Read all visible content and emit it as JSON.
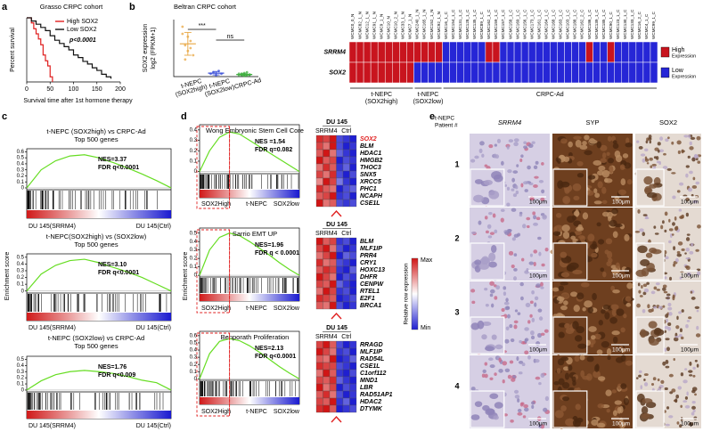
{
  "a": {
    "letter": "a",
    "title": "Grasso CRPC cohort",
    "y_label": "Percent survival",
    "x_label": "Survival time after 1st hormone therapy",
    "p_value": "p<0.0001",
    "xlim": [
      0,
      200
    ],
    "ylim": [
      0,
      100
    ],
    "xticks": [
      0,
      50,
      100,
      150,
      200
    ],
    "series": [
      {
        "name": "High SOX2",
        "color": "#e02020",
        "x": [
          0,
          10,
          15,
          20,
          25,
          30,
          35,
          40,
          45,
          50,
          55
        ],
        "y": [
          100,
          92,
          83,
          75,
          67,
          58,
          42,
          33,
          25,
          8,
          0
        ]
      },
      {
        "name": "Low SOX2",
        "color": "#111111",
        "x": [
          0,
          10,
          20,
          30,
          40,
          50,
          60,
          70,
          80,
          90,
          100,
          110,
          120,
          130,
          140,
          150,
          160,
          170,
          180
        ],
        "y": [
          100,
          95,
          90,
          85,
          80,
          72,
          65,
          60,
          55,
          50,
          42,
          38,
          32,
          28,
          22,
          18,
          12,
          8,
          5
        ]
      }
    ]
  },
  "b": {
    "letter": "b",
    "title": "Beltran CRPC cohort",
    "y_label": [
      "SOX2 expression",
      "log2 (FPKM+1)"
    ],
    "categories": [
      [
        "t-NEPC",
        "(SOX2high)"
      ],
      [
        "t-NEPC",
        "(SOX2low)"
      ],
      [
        "CRPC-Ad"
      ]
    ],
    "colors": [
      "#e8a640",
      "#3a4fd8",
      "#3fae3f"
    ],
    "ylim": [
      0,
      40
    ],
    "points": [
      [
        30,
        22,
        18,
        25,
        15,
        35,
        12,
        28,
        20
      ],
      [
        2,
        3,
        1,
        4,
        2
      ],
      [
        1,
        2,
        0.5,
        3,
        1.5,
        2,
        1,
        2.5,
        0.8,
        1.2
      ]
    ],
    "means": [
      23,
      2.4,
      1.5
    ],
    "sd": [
      8,
      1.2,
      0.8
    ],
    "significance": [
      "***",
      "ns"
    ]
  },
  "heatmap": {
    "columns": [
      "WCMC0_0_N",
      "WCMC82_1_N",
      "WCMC12_1_N",
      "WCMC91_1_N",
      "WCMC9_1_N",
      "WCMC10_N",
      "WCMC10_2_N",
      "WCMC33_1_N",
      "WCMC7_1_N",
      "WCMC240_1_N",
      "WCMC165_1_N",
      "WCMC152_1_N",
      "WCMC92_1_N",
      "WCMC16_1_C",
      "WCMC154_1_C",
      "WCMC131_1_C",
      "WCMC128_1_C",
      "WCMC135_1_C",
      "WCMC89_1_C",
      "WCMC162_1_C",
      "WCMC159_1_C",
      "WCMC157_1_C",
      "WCMC158_1_C",
      "WCMC169_1_C",
      "WCMC156_1_C",
      "WCMC173_1_C",
      "WCMC161_1_C",
      "WCMC164_1_C",
      "WCMC168_1_C",
      "WCMC163_1_C",
      "WCMC103_1_C",
      "WCMC188_1_C",
      "WCMC162_2_C",
      "WCMC186_1_C",
      "WCMC139_1_C",
      "WCMC185_1_C",
      "WCMC90_1_C",
      "WCMC123_1_C",
      "WCMC130_1_C",
      "WCMC133_1_C",
      "WCMC16_2_C",
      "WCMC4_1_C",
      "WCMC99_1_C"
    ],
    "rows": [
      "SRRM4",
      "SOX2"
    ],
    "values": [
      [
        1,
        1,
        1,
        1,
        1,
        1,
        1,
        1,
        1,
        1,
        1,
        1,
        1,
        0,
        0,
        0,
        0,
        0,
        0,
        1,
        1,
        0,
        0,
        0,
        0,
        0,
        0,
        0,
        0,
        0,
        0,
        0,
        0,
        1,
        0,
        0,
        1,
        0,
        0,
        0,
        0,
        0,
        0
      ],
      [
        1,
        1,
        1,
        1,
        1,
        1,
        1,
        1,
        1,
        0,
        0,
        0,
        0,
        0,
        0,
        0,
        0,
        0,
        0,
        0,
        0,
        0,
        0,
        0,
        0,
        0,
        0,
        0,
        0,
        0,
        0,
        0,
        0,
        0,
        0,
        0,
        0,
        0,
        0,
        0,
        0,
        0,
        0
      ]
    ],
    "groups": [
      [
        "t-NEPC",
        "(SOX2high)"
      ],
      [
        "t-NEPC",
        "(SOX2low)"
      ],
      [
        "CRPC-Ad"
      ]
    ],
    "high_color": "#c8141e",
    "low_color": "#2626d6",
    "high_label": [
      "High",
      "Expression"
    ],
    "low_label": [
      "Low",
      "Expression"
    ]
  },
  "c": {
    "letter": "c",
    "y_label": "Enrichment score",
    "color": "#66dd22",
    "plots": [
      {
        "title": [
          "t-NEPC (SOX2high) vs CRPC-Ad",
          "Top 500 genes"
        ],
        "nes": "NES=3.37",
        "fdr": "FDR q<0.0001",
        "x_labels": [
          "DU 145(SRRM4)",
          "DU 145(Ctrl)"
        ],
        "xlim": [
          0,
          1
        ],
        "ylim": [
          -0.03,
          0.65
        ],
        "yticks": [
          0,
          0.1,
          0.2,
          0.3,
          0.4,
          0.5,
          0.6
        ],
        "x": [
          0,
          0.1,
          0.2,
          0.3,
          0.4,
          0.5,
          0.6,
          0.7,
          0.8,
          0.9,
          1
        ],
        "values": [
          0,
          0.3,
          0.45,
          0.53,
          0.55,
          0.5,
          0.42,
          0.33,
          0.23,
          0.12,
          0
        ]
      },
      {
        "title": [
          "t-NEPC(SOX2high) vs (SOX2low)",
          "Top 500 genes"
        ],
        "nes": "NES=3.10",
        "fdr": "FDR q<0.0001",
        "x_labels": [
          "DU 145(SRRM4)",
          "DU 145(Ctrl)"
        ],
        "xlim": [
          0,
          1
        ],
        "ylim": [
          -0.03,
          0.55
        ],
        "yticks": [
          0,
          0.1,
          0.2,
          0.3,
          0.4,
          0.5
        ],
        "x": [
          0,
          0.1,
          0.2,
          0.3,
          0.4,
          0.5,
          0.6,
          0.7,
          0.8,
          0.9,
          1
        ],
        "values": [
          0,
          0.25,
          0.38,
          0.45,
          0.47,
          0.42,
          0.35,
          0.28,
          0.2,
          0.1,
          0
        ]
      },
      {
        "title": [
          "t-NEPC (SOX2low) vs CRPC-Ad",
          "Top 500 genes"
        ],
        "nes": "NES=1.76",
        "fdr": "FDR q<0.009",
        "x_labels": [
          "DU 145(SRRM4)",
          "DU 145(Ctrl)"
        ],
        "xlim": [
          0,
          1
        ],
        "ylim": [
          -0.03,
          0.55
        ],
        "yticks": [
          0,
          0.1,
          0.2,
          0.3,
          0.4,
          0.5
        ],
        "x": [
          0,
          0.1,
          0.2,
          0.3,
          0.4,
          0.5,
          0.6,
          0.7,
          0.8,
          0.9,
          1
        ],
        "values": [
          0,
          0.15,
          0.25,
          0.3,
          0.32,
          0.3,
          0.27,
          0.22,
          0.16,
          0.12,
          0
        ]
      }
    ]
  },
  "d": {
    "letter": "d",
    "y_label": "Enrichment score",
    "color": "#66dd22",
    "legend": {
      "max": "Max",
      "min": "Min",
      "label": "Relative row expression"
    },
    "plots": [
      {
        "title": "Wong Embryonic Stem Cell Core",
        "nes": "NES =1.54",
        "fdr": "FDR q=0.082",
        "x_labels": [
          "SOX2High",
          "t-NEPC",
          "SOX2low"
        ],
        "xlim": [
          0,
          1
        ],
        "ylim": [
          -0.02,
          0.45
        ],
        "yticks": [
          0,
          0.1,
          0.2,
          0.3,
          0.4
        ],
        "x": [
          0,
          0.1,
          0.2,
          0.3,
          0.4,
          0.5,
          0.6,
          0.7,
          0.8,
          0.9,
          1
        ],
        "values": [
          0,
          0.2,
          0.33,
          0.38,
          0.36,
          0.3,
          0.24,
          0.18,
          0.12,
          0.06,
          0
        ],
        "heatmap": {
          "header": "DU 145",
          "columns": [
            "SRRM4",
            "Ctrl"
          ],
          "genes": [
            "SOX2",
            "BLM",
            "HDAC1",
            "HMGB2",
            "THOC3",
            "SNX5",
            "XRCC5",
            "PHC1",
            "NCAPH",
            "CSE1L"
          ],
          "gene_colors": [
            "#e02020",
            "#000000",
            "#000000",
            "#000000",
            "#000000",
            "#000000",
            "#000000",
            "#000000",
            "#000000",
            "#000000"
          ],
          "values": [
            [
              0.95,
              0.9,
              1,
              0.1,
              0.05,
              0
            ],
            [
              0.9,
              0.8,
              1,
              0.1,
              0,
              0.05
            ],
            [
              0.85,
              1,
              0.8,
              0.15,
              0.05,
              0
            ],
            [
              1,
              0.85,
              0.9,
              0,
              0.1,
              0.05
            ],
            [
              0.8,
              0.95,
              0.85,
              0.05,
              0.15,
              0
            ],
            [
              0.9,
              0.8,
              0.95,
              0.1,
              0,
              0.1
            ],
            [
              0.75,
              1,
              0.9,
              0.2,
              0.05,
              0
            ],
            [
              0.95,
              0.85,
              0.8,
              0,
              0.1,
              0.15
            ],
            [
              0.85,
              0.9,
              1,
              0.05,
              0.1,
              0
            ],
            [
              1,
              0.8,
              0.85,
              0.1,
              0.05,
              0.1
            ]
          ]
        }
      },
      {
        "title": "Sarrio EMT UP",
        "nes": "NES=1.96",
        "fdr": "FDR q < 0.0001",
        "x_labels": [
          "SOX2High",
          "t-NEPC",
          "SOX2low"
        ],
        "xlim": [
          0,
          1
        ],
        "ylim": [
          -0.02,
          0.56
        ],
        "yticks": [
          0,
          0.1,
          0.2,
          0.3,
          0.4,
          0.5
        ],
        "x": [
          0,
          0.1,
          0.2,
          0.3,
          0.4,
          0.5,
          0.6,
          0.7,
          0.8,
          0.9,
          1
        ],
        "values": [
          0,
          0.3,
          0.45,
          0.5,
          0.47,
          0.4,
          0.32,
          0.24,
          0.15,
          0.07,
          0
        ],
        "heatmap": {
          "header": "DU 145",
          "columns": [
            "SRRM4",
            "Ctrl"
          ],
          "genes": [
            "BLM",
            "MLF1IP",
            "PRR4",
            "CRY1",
            "HOXC13",
            "DHFR",
            "CENPW",
            "RTEL1",
            "E2F1",
            "BRCA1"
          ],
          "values": [
            [
              1,
              0.85,
              0.9,
              0.05,
              0.1,
              0
            ],
            [
              0.9,
              1,
              0.8,
              0.1,
              0,
              0.05
            ],
            [
              0.8,
              0.9,
              1,
              0,
              0.15,
              0.1
            ],
            [
              0.95,
              0.8,
              0.85,
              0.1,
              0.05,
              0
            ],
            [
              0.85,
              0.95,
              0.9,
              0.05,
              0,
              0.15
            ],
            [
              1,
              0.9,
              0.8,
              0,
              0.1,
              0.05
            ],
            [
              0.9,
              0.85,
              1,
              0.15,
              0.05,
              0
            ],
            [
              0.8,
              1,
              0.9,
              0.05,
              0.1,
              0
            ],
            [
              0.95,
              0.9,
              0.85,
              0,
              0.05,
              0.1
            ],
            [
              0.85,
              0.8,
              1,
              0.1,
              0,
              0.05
            ]
          ]
        }
      },
      {
        "title": "Benporath Proliferation",
        "nes": "NES=2.13",
        "fdr": "FDR q<0.0001",
        "x_labels": [
          "SOX2High",
          "t-NEPC",
          "SOX2low"
        ],
        "xlim": [
          0,
          1
        ],
        "ylim": [
          -0.02,
          0.66
        ],
        "yticks": [
          0,
          0.1,
          0.2,
          0.3,
          0.4,
          0.5,
          0.6
        ],
        "x": [
          0,
          0.1,
          0.2,
          0.3,
          0.4,
          0.5,
          0.6,
          0.7,
          0.8,
          0.9,
          1
        ],
        "values": [
          0,
          0.35,
          0.52,
          0.56,
          0.53,
          0.46,
          0.37,
          0.27,
          0.17,
          0.08,
          0
        ],
        "heatmap": {
          "header": "DU 145",
          "columns": [
            "SRRM4",
            "Ctrl"
          ],
          "genes": [
            "RRAGD",
            "MLF1IP",
            "RAD54L",
            "CSE1L",
            "C1orf112",
            "MND1",
            "LBR",
            "RAD51AP1",
            "HDAC2",
            "DTYMK"
          ],
          "values": [
            [
              0.9,
              1,
              0.85,
              0.1,
              0,
              0.05
            ],
            [
              1,
              0.9,
              0.8,
              0.05,
              0.1,
              0
            ],
            [
              0.85,
              0.8,
              1,
              0,
              0.05,
              0.15
            ],
            [
              0.95,
              0.9,
              0.9,
              0.1,
              0.05,
              0
            ],
            [
              0.8,
              1,
              0.85,
              0.05,
              0,
              0.1
            ],
            [
              0.9,
              0.85,
              0.95,
              0.15,
              0.05,
              0
            ],
            [
              1,
              0.8,
              0.9,
              0,
              0.1,
              0.05
            ],
            [
              0.85,
              0.95,
              0.8,
              0.1,
              0,
              0.05
            ],
            [
              0.9,
              0.85,
              1,
              0.05,
              0.15,
              0
            ],
            [
              0.95,
              1,
              0.85,
              0,
              0.05,
              0.1
            ]
          ]
        }
      }
    ]
  },
  "e": {
    "letter": "e",
    "header": [
      "t-NEPC",
      "Patient #"
    ],
    "columns": [
      "SRRM4",
      "SYP",
      "SOX2"
    ],
    "rows": [
      1,
      2,
      3,
      4
    ],
    "scale_bar": "100μm"
  }
}
